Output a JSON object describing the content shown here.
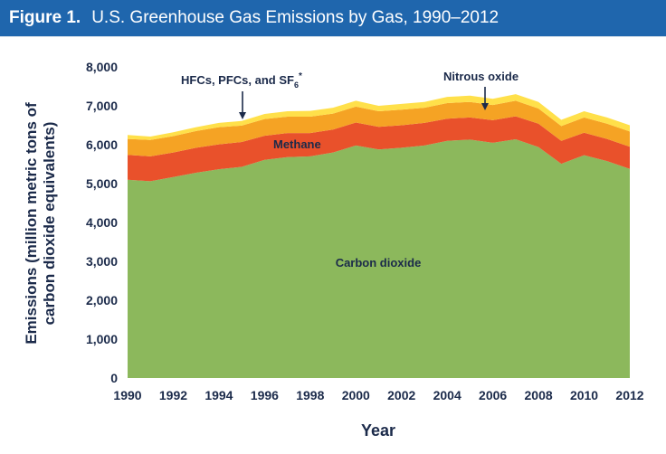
{
  "header": {
    "figure_label": "Figure 1.",
    "title": "U.S. Greenhouse Gas Emissions by Gas, 1990–2012"
  },
  "colors": {
    "header_bg": "#1f66ad",
    "carbon_dioxide": "#8cb85c",
    "methane": "#e9512b",
    "nitrous_oxide": "#f5a324",
    "hfcs": "#ffe04a",
    "text": "#1b2a4a"
  },
  "chart_data": {
    "type": "area",
    "stacked": true,
    "title": "U.S. Greenhouse Gas Emissions by Gas, 1990–2012",
    "xlabel": "Year",
    "ylabel_lines": [
      "Emissions (million metric tons of",
      "carbon dioxide equivalents)"
    ],
    "xlim": [
      1990,
      2012
    ],
    "ylim": [
      0,
      8000
    ],
    "x_ticks": [
      1990,
      1992,
      1994,
      1996,
      1998,
      2000,
      2002,
      2004,
      2006,
      2008,
      2010,
      2012
    ],
    "y_ticks": [
      0,
      1000,
      2000,
      3000,
      4000,
      5000,
      6000,
      7000,
      8000
    ],
    "y_tick_labels": [
      "0",
      "1,000",
      "2,000",
      "3,000",
      "4,000",
      "5,000",
      "6,000",
      "7,000",
      "8,000"
    ],
    "grid": false,
    "x": [
      1990,
      1991,
      1992,
      1993,
      1994,
      1995,
      1996,
      1997,
      1998,
      1999,
      2000,
      2001,
      2002,
      2003,
      2004,
      2005,
      2006,
      2007,
      2008,
      2009,
      2010,
      2011,
      2012
    ],
    "series": [
      {
        "key": "carbon_dioxide",
        "name": "Carbon dioxide",
        "values": [
          5100,
          5060,
          5170,
          5280,
          5370,
          5430,
          5610,
          5680,
          5700,
          5800,
          5980,
          5880,
          5920,
          5980,
          6100,
          6130,
          6050,
          6140,
          5940,
          5510,
          5730,
          5580,
          5380
        ]
      },
      {
        "key": "methane",
        "name": "Methane",
        "values": [
          640,
          640,
          630,
          640,
          640,
          640,
          620,
          620,
          600,
          590,
          590,
          580,
          580,
          580,
          570,
          570,
          580,
          590,
          600,
          590,
          580,
          570,
          570
        ]
      },
      {
        "key": "nitrous_oxide",
        "name": "Nitrous oxide",
        "values": [
          410,
          420,
          420,
          430,
          440,
          420,
          430,
          420,
          420,
          410,
          410,
          400,
          400,
          390,
          400,
          400,
          390,
          400,
          390,
          380,
          390,
          390,
          390
        ]
      },
      {
        "key": "hfcs",
        "name": "HFCs, PFCs, and SF6",
        "values": [
          100,
          90,
          100,
          100,
          110,
          120,
          130,
          140,
          150,
          150,
          150,
          140,
          150,
          150,
          160,
          160,
          160,
          170,
          170,
          160,
          160,
          160,
          160
        ]
      }
    ],
    "annotations": {
      "hfcs_label": "HFCs, PFCs, and SF",
      "hfcs_sub": "6",
      "hfcs_star": "*",
      "nitrous_label": "Nitrous oxide",
      "methane_label": "Methane",
      "co2_label": "Carbon dioxide"
    }
  }
}
